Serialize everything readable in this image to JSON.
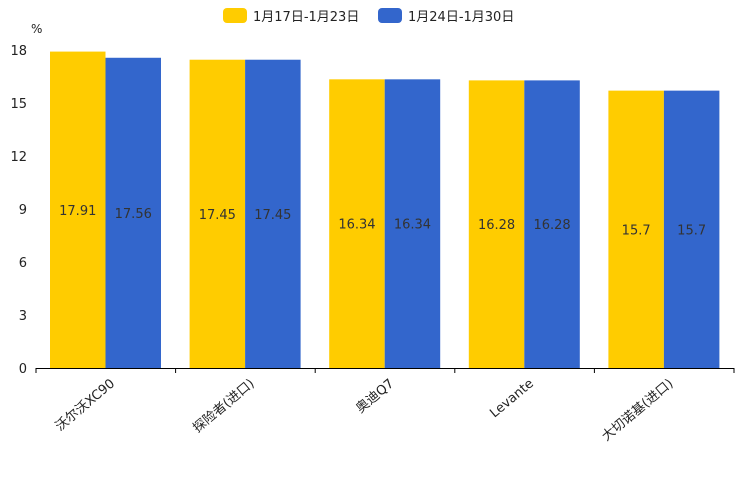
{
  "chart_data": {
    "type": "bar",
    "unit": "%",
    "categories": [
      "沃尔沃XC90",
      "探险者(进口)",
      "奥迪Q7",
      "Levante",
      "大切诺基(进口)"
    ],
    "series": [
      {
        "name": "1月17日-1月23日",
        "color": "#FFCC00",
        "values": [
          17.91,
          17.45,
          16.34,
          16.28,
          15.7
        ]
      },
      {
        "name": "1月24日-1月30日",
        "color": "#3366CC",
        "values": [
          17.56,
          17.45,
          16.34,
          16.28,
          15.7
        ]
      }
    ],
    "ylim": [
      0,
      18
    ],
    "yticks": [
      0,
      3,
      6,
      9,
      12,
      15,
      18
    ],
    "legend_position": "top-center",
    "xlabel": "",
    "ylabel": "%"
  }
}
